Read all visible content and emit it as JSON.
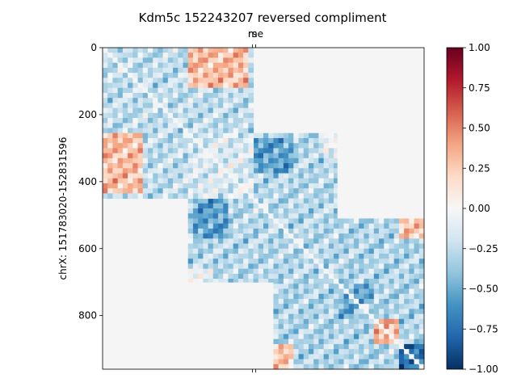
{
  "chart_data": {
    "type": "heatmap",
    "title": "Kdm5c 152243207 reversed compliment",
    "ylabel": "chrX: 151783020-152831596",
    "xlabel": "",
    "top_tick_labels": [
      "rs",
      "me"
    ],
    "y_ticks": [
      0,
      200,
      400,
      600,
      800
    ],
    "y_tick_labels": [
      "0",
      "200",
      "400",
      "600",
      "800"
    ],
    "ylim": [
      0,
      960
    ],
    "xlim": [
      0,
      960
    ],
    "matrix_size": 960,
    "colorbar": {
      "cmap": "RdBu_r",
      "vmin": -1.0,
      "vmax": 1.0,
      "ticks": [
        1.0,
        0.75,
        0.5,
        0.25,
        0.0,
        -0.25,
        -0.5,
        -0.75,
        -1.0
      ],
      "tick_labels": [
        "1.00",
        "0.75",
        "0.50",
        "0.25",
        "0.00",
        "−0.25",
        "−0.50",
        "−0.75",
        "−1.00"
      ]
    },
    "missing_value_color": "#f5f5f5",
    "blocks": [
      {
        "start": 0,
        "end": 450,
        "mean": -0.2,
        "pattern": "bottom-left and top-right positive (~0.35), remainder negative (~-0.25)"
      },
      {
        "start": 255,
        "end": 700,
        "mean": -0.3,
        "pattern": "mostly negative, strongest ~-0.6 near 330-420"
      },
      {
        "start": 510,
        "end": 960,
        "mean": -0.3,
        "pattern": "mixed, positive patches ~0.4, strong negative ~-0.8 near 900-960"
      }
    ]
  }
}
